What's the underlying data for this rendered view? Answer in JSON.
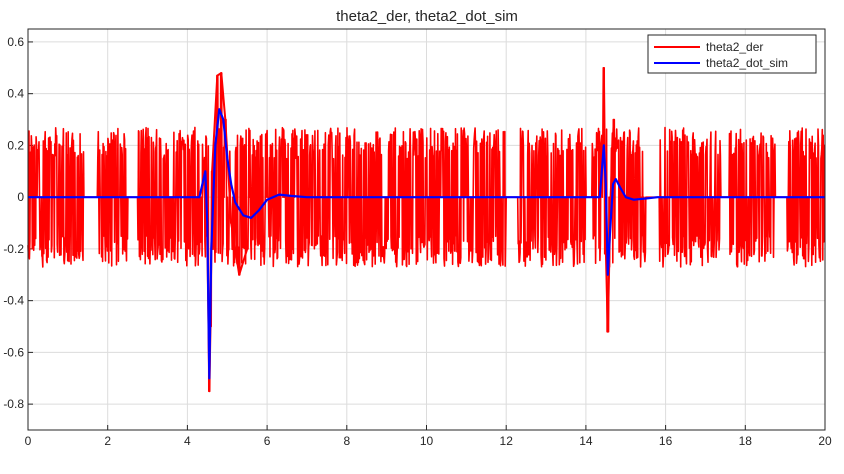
{
  "chart_data": {
    "type": "line",
    "title": "theta2_der, theta2_dot_sim",
    "xlabel": "",
    "ylabel": "",
    "xlim": [
      0,
      20
    ],
    "ylim": [
      -0.9,
      0.65
    ],
    "xticks": [
      0,
      2,
      4,
      6,
      8,
      10,
      12,
      14,
      16,
      18,
      20
    ],
    "xtick_labels": [
      "0",
      "2",
      "4",
      "6",
      "8",
      "10",
      "12",
      "14",
      "16",
      "18",
      "20"
    ],
    "yticks": [
      -0.8,
      -0.6,
      -0.4,
      -0.2,
      0,
      0.2,
      0.4,
      0.6
    ],
    "ytick_labels": [
      "-0.8",
      "-0.6",
      "-0.4",
      "-0.2",
      "0",
      "0.2",
      "0.4",
      "0.6"
    ],
    "grid": true,
    "legend_position": "top-right",
    "series": [
      {
        "name": "theta2_der",
        "color": "#ff0000",
        "style": "noisy oscillation",
        "noise_amplitude": 0.27,
        "silent_intervals": [
          [
            1.4,
            1.75
          ],
          [
            2.5,
            2.75
          ],
          [
            12.0,
            12.3
          ],
          [
            14.0,
            14.15
          ],
          [
            15.5,
            15.85
          ],
          [
            17.4,
            17.6
          ],
          [
            18.75,
            19.05
          ]
        ],
        "x": [
          4.4,
          4.5,
          4.55,
          4.58,
          4.62,
          4.75,
          4.85,
          4.95,
          5.1,
          5.3,
          5.5,
          14.45,
          14.5,
          14.55,
          14.62,
          14.7
        ],
        "y": [
          0.1,
          -0.15,
          -0.75,
          -0.5,
          0.1,
          0.47,
          0.48,
          0.3,
          -0.1,
          -0.3,
          -0.2,
          0.5,
          -0.2,
          -0.52,
          0.0,
          0.3
        ]
      },
      {
        "name": "theta2_dot_sim",
        "color": "#0000ff",
        "x": [
          0,
          4.3,
          4.45,
          4.5,
          4.55,
          4.6,
          4.7,
          4.8,
          4.9,
          5.0,
          5.1,
          5.2,
          5.4,
          5.6,
          5.8,
          6.0,
          6.3,
          6.6,
          7.0,
          14.35,
          14.45,
          14.5,
          14.55,
          14.6,
          14.68,
          14.75,
          14.85,
          15.0,
          15.2,
          15.5,
          15.8,
          20
        ],
        "y": [
          0,
          0,
          0.1,
          -0.1,
          -0.7,
          -0.2,
          0.2,
          0.34,
          0.3,
          0.15,
          0.05,
          -0.02,
          -0.07,
          -0.08,
          -0.05,
          -0.01,
          0.01,
          0.005,
          0,
          0,
          0.2,
          0.05,
          -0.3,
          -0.15,
          0.05,
          0.07,
          0.04,
          0.0,
          -0.01,
          -0.005,
          0,
          0
        ]
      }
    ]
  }
}
